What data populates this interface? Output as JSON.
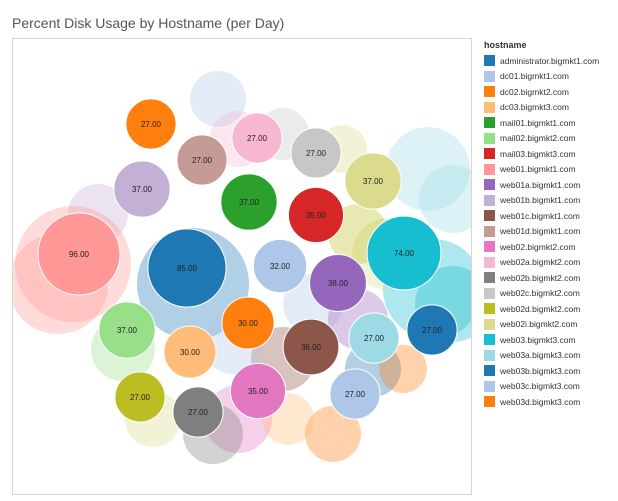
{
  "chart_data": {
    "type": "bubble",
    "title": "Percent Disk Usage by Hostname (per Day)",
    "legend_title": "hostname",
    "legend_placement": "right",
    "legend": [
      {
        "name": "administrator.bigmkt1.com",
        "color": "#1f77b4"
      },
      {
        "name": "dc01.bigmkt1.com",
        "color": "#aec7e8"
      },
      {
        "name": "dc02.bigmkt2.com",
        "color": "#ff7f0e"
      },
      {
        "name": "dc03.bigmkt3.com",
        "color": "#ffbb78"
      },
      {
        "name": "mail01.bigmkt1.com",
        "color": "#2ca02c"
      },
      {
        "name": "mail02.bigmkt2.com",
        "color": "#98df8a"
      },
      {
        "name": "mail03.bigmkt3.com",
        "color": "#d62728"
      },
      {
        "name": "web01.bigmkt1.com",
        "color": "#ff9896"
      },
      {
        "name": "web01a.bigmkt1.com",
        "color": "#9467bd"
      },
      {
        "name": "web01b.bigmkt1.com",
        "color": "#c5b0d5"
      },
      {
        "name": "web01c.bigmkt1.com",
        "color": "#8c564b"
      },
      {
        "name": "web01d.bigmkt1.com",
        "color": "#c49c94"
      },
      {
        "name": "web02.bigmkt2.com",
        "color": "#e377c2"
      },
      {
        "name": "web02a.bigmkt2.com",
        "color": "#f7b6d2"
      },
      {
        "name": "web02b.bigmkt2.com",
        "color": "#7f7f7f"
      },
      {
        "name": "web02c.bigmkt2.com",
        "color": "#c7c7c7"
      },
      {
        "name": "web02d.bigmkt2.com",
        "color": "#bcbd22"
      },
      {
        "name": "web02i.bigmkt2.com",
        "color": "#dbdb8d"
      },
      {
        "name": "web03.bigmkt3.com",
        "color": "#17becf"
      },
      {
        "name": "web03a.bigmkt3.com",
        "color": "#9edae5"
      },
      {
        "name": "web03b.bigmkt3.com",
        "color": "#1f77b4"
      },
      {
        "name": "web03c.bigmkt3.com",
        "color": "#aec7e8"
      },
      {
        "name": "web03d.bigmkt3.com",
        "color": "#ff7f0e"
      }
    ],
    "labeled_bubbles": [
      {
        "label": "27.00",
        "value": 27,
        "color": "#ff7f0e"
      },
      {
        "label": "27.00",
        "value": 27,
        "color": "#c49c94"
      },
      {
        "label": "27.00",
        "value": 27,
        "color": "#f7b6d2"
      },
      {
        "label": "27.00",
        "value": 27,
        "color": "#c7c7c7"
      },
      {
        "label": "37.00",
        "value": 37,
        "color": "#c5b0d5"
      },
      {
        "label": "37.00",
        "value": 37,
        "color": "#2ca02c"
      },
      {
        "label": "35.00",
        "value": 35,
        "color": "#d62728"
      },
      {
        "label": "37.00",
        "value": 37,
        "color": "#dbdb8d"
      },
      {
        "label": "96.00",
        "value": 96,
        "color": "#ff9896"
      },
      {
        "label": "85.00",
        "value": 85,
        "color": "#1f77b4"
      },
      {
        "label": "32.00",
        "value": 32,
        "color": "#aec7e8"
      },
      {
        "label": "74.00",
        "value": 74,
        "color": "#17becf"
      },
      {
        "label": "38.00",
        "value": 38,
        "color": "#9467bd"
      },
      {
        "label": "37.00",
        "value": 37,
        "color": "#98df8a"
      },
      {
        "label": "30.00",
        "value": 30,
        "color": "#ff7f0e"
      },
      {
        "label": "30.00",
        "value": 30,
        "color": "#ffbb78"
      },
      {
        "label": "36.00",
        "value": 36,
        "color": "#8c564b"
      },
      {
        "label": "27.00",
        "value": 27,
        "color": "#9edae5"
      },
      {
        "label": "27.00",
        "value": 27,
        "color": "#1f77b4"
      },
      {
        "label": "27.00",
        "value": 27,
        "color": "#bcbd22"
      },
      {
        "label": "35.00",
        "value": 35,
        "color": "#e377c2"
      },
      {
        "label": "27.00",
        "value": 27,
        "color": "#aec7e8"
      },
      {
        "label": "27.00",
        "value": 27,
        "color": "#7f7f7f"
      }
    ]
  }
}
